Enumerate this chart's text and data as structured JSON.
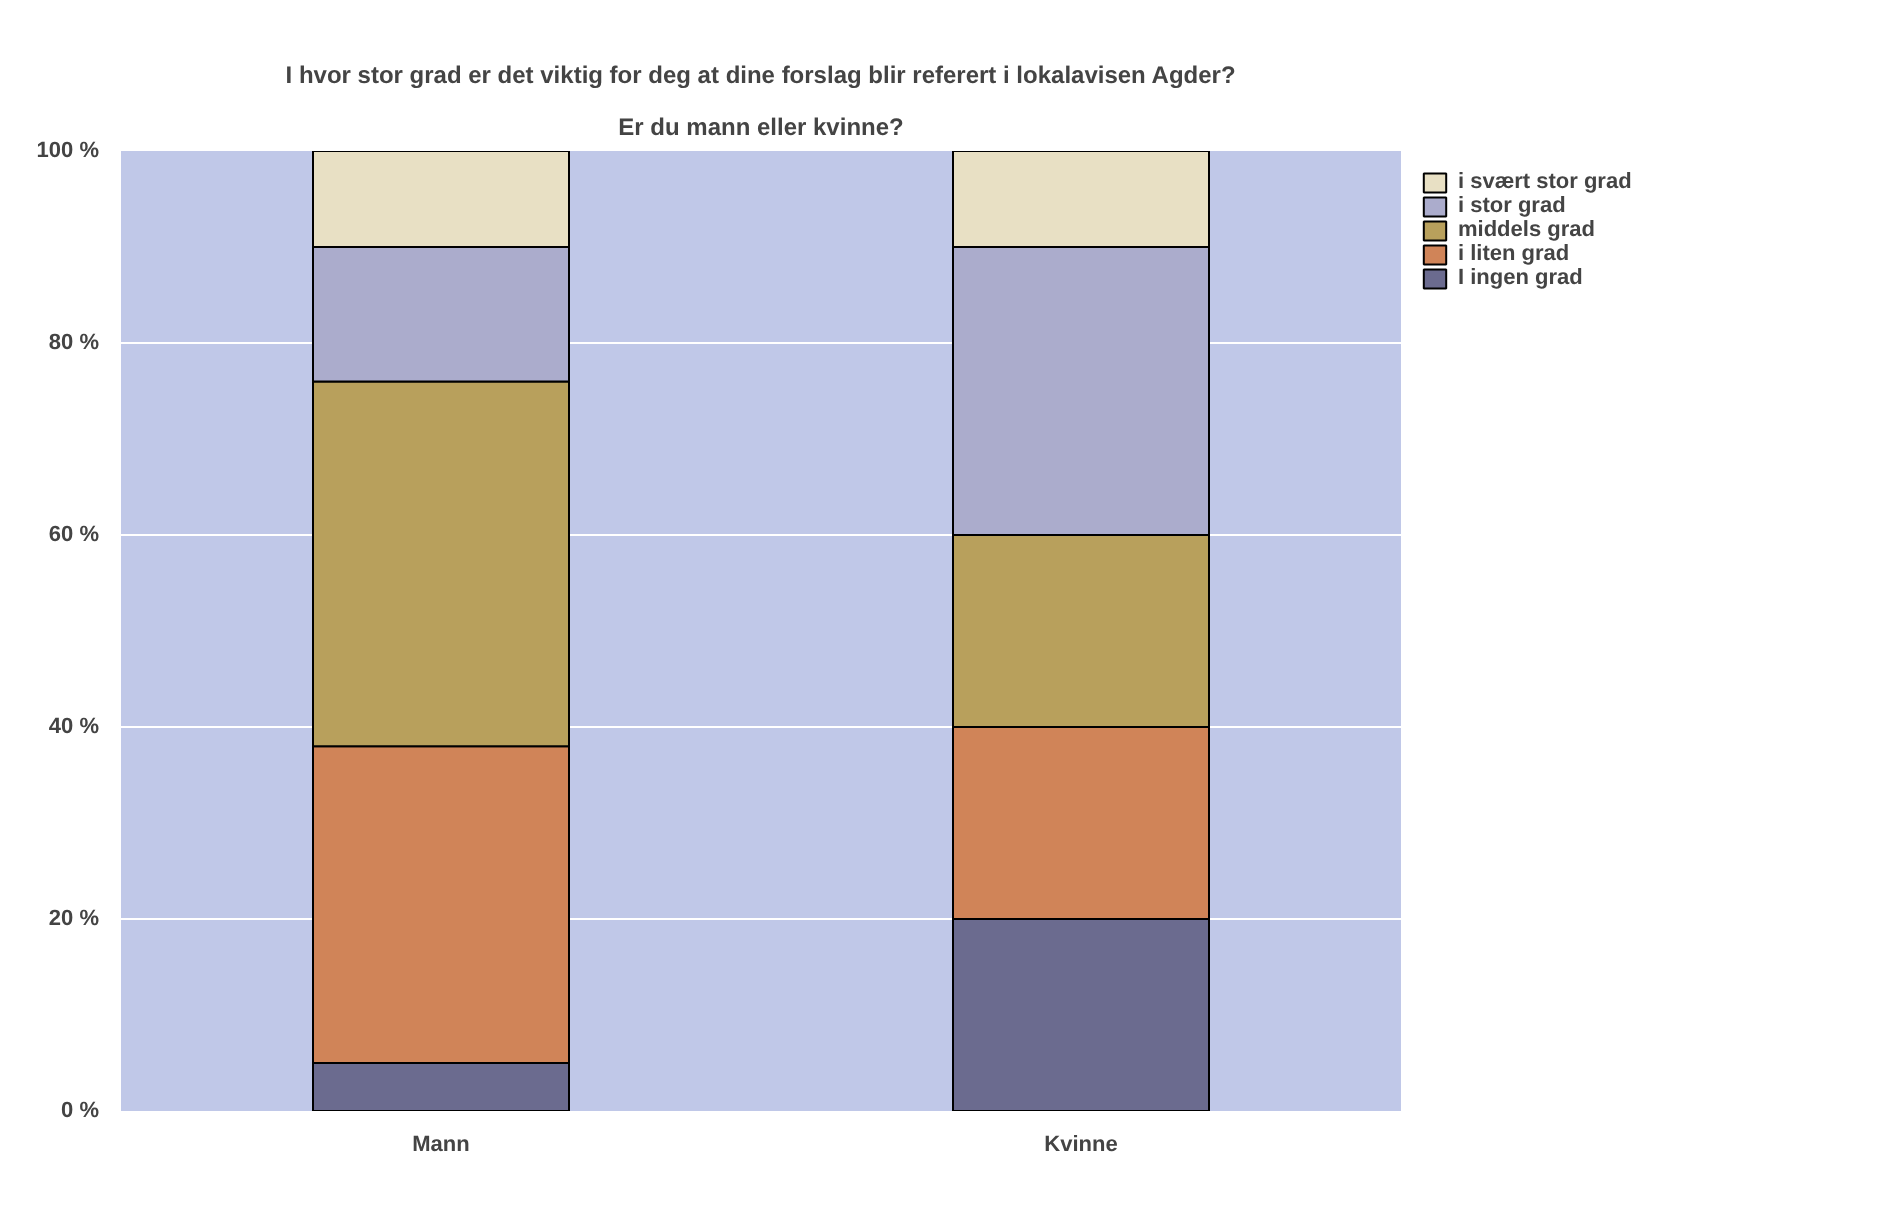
{
  "chart_data": {
    "type": "bar",
    "title": "I hvor stor grad er det viktig for deg at dine forslag blir referert i lokalavisen Agder?",
    "subtitle": "Er du mann eller kvinne?",
    "categories": [
      "Mann",
      "Kvinne"
    ],
    "stacked": true,
    "series": [
      {
        "name": "I ingen grad",
        "color": "#6b6b8f",
        "values": [
          5,
          20
        ]
      },
      {
        "name": "i liten grad",
        "color": "#d08458",
        "values": [
          33,
          20
        ]
      },
      {
        "name": "middels grad",
        "color": "#b8a05c",
        "values": [
          38,
          20
        ]
      },
      {
        "name": "i stor grad",
        "color": "#abaccc",
        "values": [
          14,
          30
        ]
      },
      {
        "name": "i svært stor grad",
        "color": "#e8e0c4",
        "values": [
          10,
          10
        ]
      }
    ],
    "ylim": [
      0,
      100
    ],
    "yticks": [
      {
        "value": 0,
        "label": "0 %"
      },
      {
        "value": 20,
        "label": "20 %"
      },
      {
        "value": 40,
        "label": "40 %"
      },
      {
        "value": 60,
        "label": "60 %"
      },
      {
        "value": 80,
        "label": "80 %"
      },
      {
        "value": 100,
        "label": "100 %"
      }
    ],
    "grid": "y",
    "legend": "top right"
  }
}
